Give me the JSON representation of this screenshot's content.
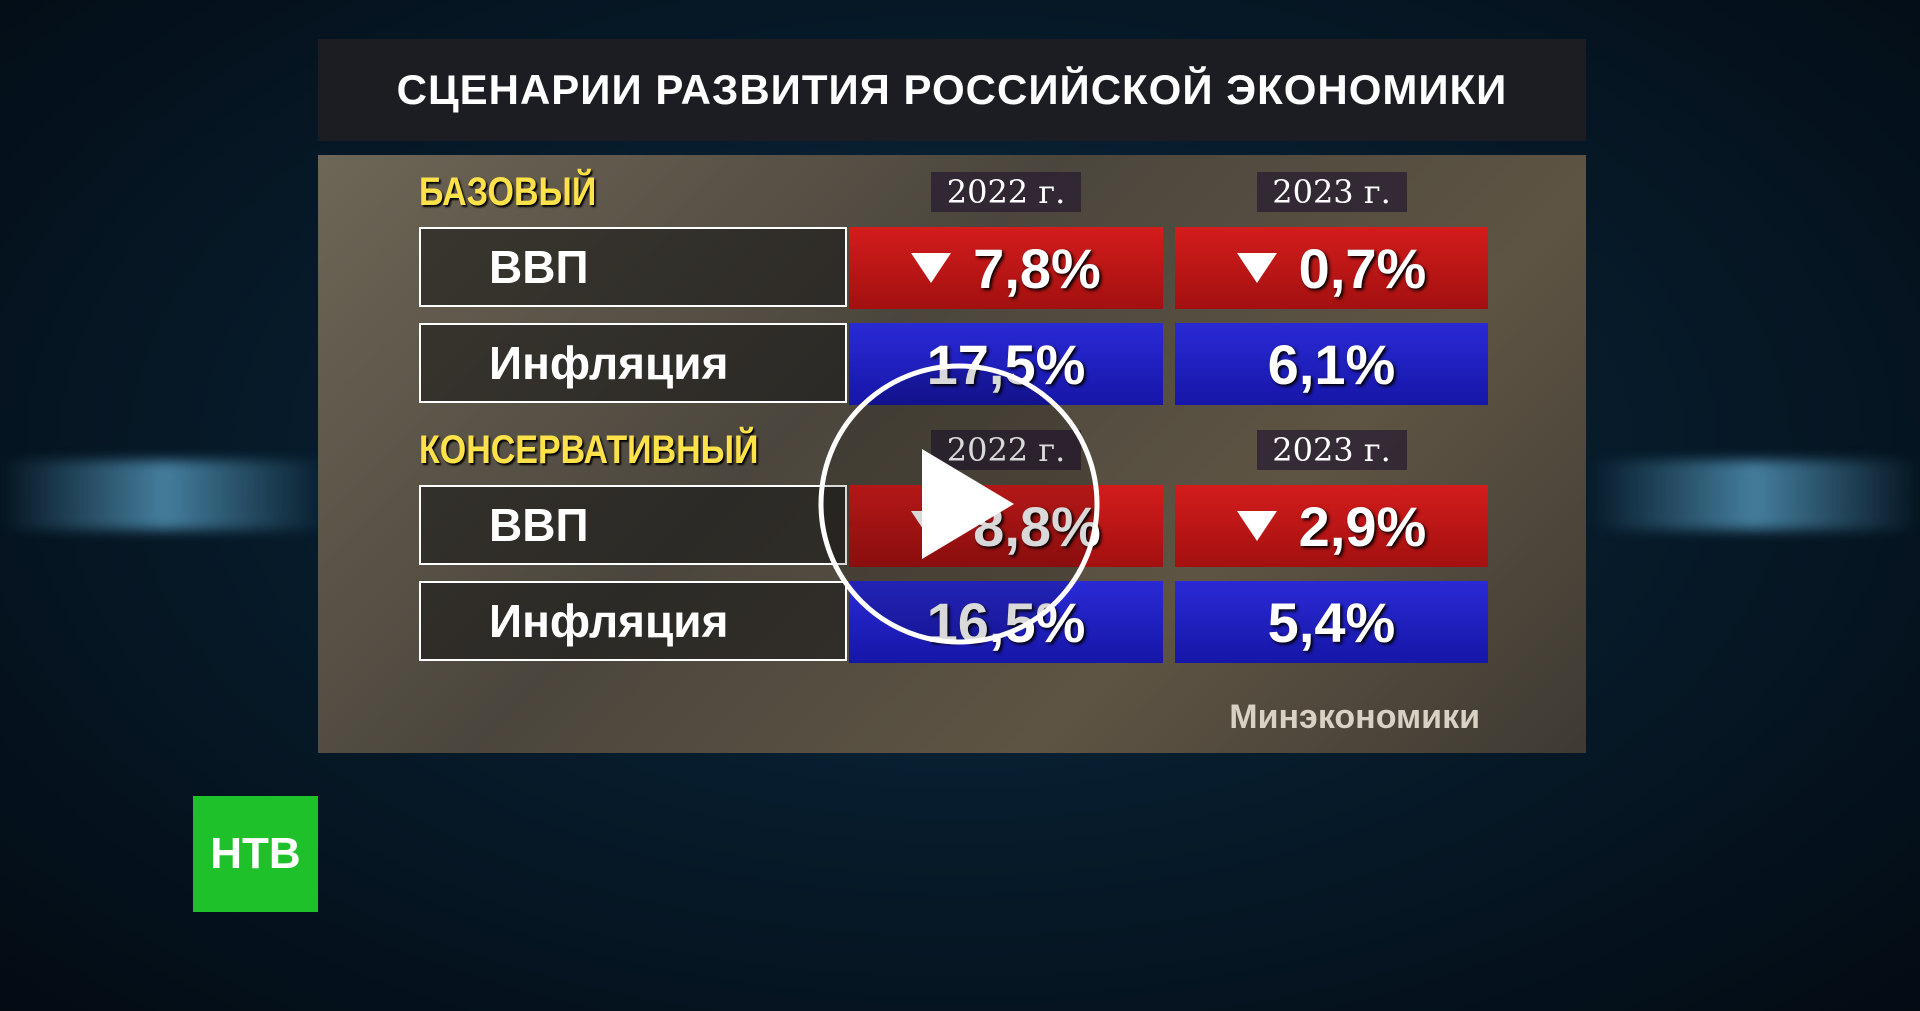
{
  "title": "СЦЕНАРИИ РАЗВИТИЯ РОССИЙСКОЙ ЭКОНОМИКИ",
  "scenarios": [
    {
      "name": "БАЗОВЫЙ",
      "years": [
        "2022 г.",
        "2023 г."
      ],
      "rows": [
        {
          "label": "ВВП",
          "values": [
            "7,8%",
            "0,7%"
          ]
        },
        {
          "label": "Инфляция",
          "values": [
            "17,5%",
            "6,1%"
          ]
        }
      ]
    },
    {
      "name": "КОНСЕРВАТИВНЫЙ",
      "years": [
        "2022 г.",
        "2023 г."
      ],
      "rows": [
        {
          "label": "ВВП",
          "values": [
            "8,8%",
            "2,9%"
          ]
        },
        {
          "label": "Инфляция",
          "values": [
            "16,5%",
            "5,4%"
          ]
        }
      ]
    }
  ],
  "source": "Минэкономики",
  "logo": "НТВ"
}
